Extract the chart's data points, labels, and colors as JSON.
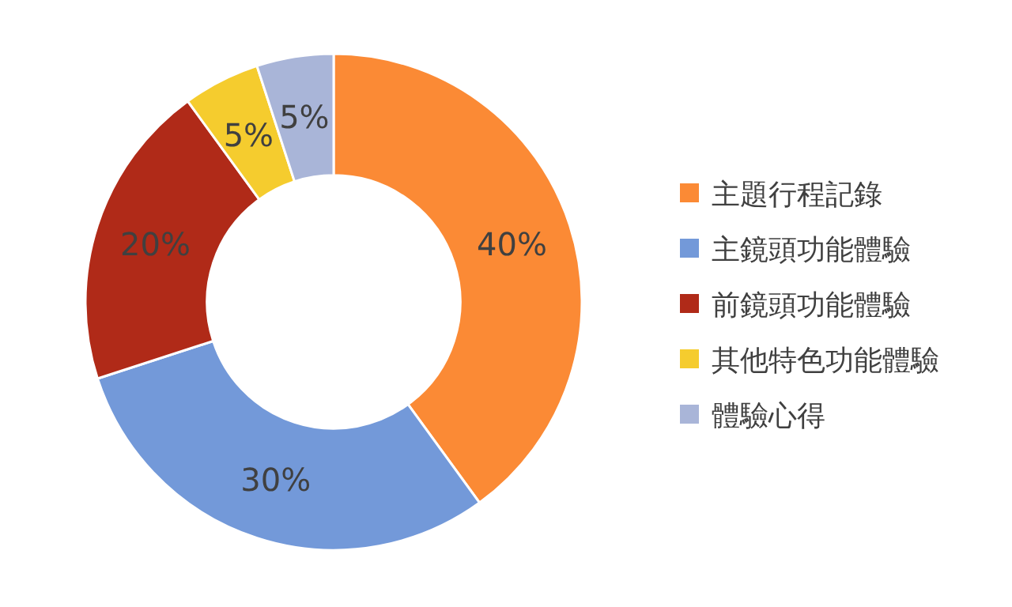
{
  "chart_data": {
    "type": "donut",
    "categories": [
      "主題行程記錄",
      "主鏡頭功能體驗",
      "前鏡頭功能體驗",
      "其他特色功能體驗",
      "體驗心得"
    ],
    "values": [
      40,
      30,
      20,
      5,
      5
    ],
    "colors": [
      "#fb8a35",
      "#7399d9",
      "#b02a18",
      "#f5cc2e",
      "#a9b5d8"
    ],
    "value_labels": [
      "40%",
      "30%",
      "20%",
      "5%",
      "5%"
    ],
    "legend": "right"
  }
}
